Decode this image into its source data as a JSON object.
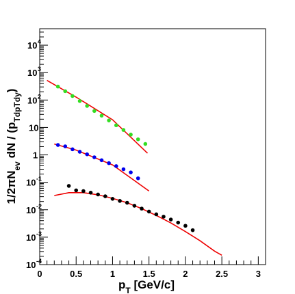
{
  "chart_data": {
    "type": "scatter",
    "xlabel": "p_T [GeV/c]",
    "ylabel": "1/2πN_ev dN / (p_Tdp_Tdy)",
    "xlim": [
      0,
      3.1
    ],
    "ylim_log10": [
      -4,
      4.6
    ],
    "y_scale": "log",
    "grid": false,
    "legend": "none",
    "x_ticks": [
      {
        "value": 0,
        "label": "0"
      },
      {
        "value": 0.5,
        "label": "0.5"
      },
      {
        "value": 1,
        "label": "1"
      },
      {
        "value": 1.5,
        "label": "1.5"
      },
      {
        "value": 2,
        "label": "2"
      },
      {
        "value": 2.5,
        "label": "2.5"
      },
      {
        "value": 3,
        "label": "3"
      }
    ],
    "y_ticks": [
      {
        "exp": 4,
        "base": "10",
        "sup": "4"
      },
      {
        "exp": 3,
        "base": "10",
        "sup": "3"
      },
      {
        "exp": 2,
        "base": "10",
        "sup": "2"
      },
      {
        "exp": 1,
        "base": "10",
        "sup": ""
      },
      {
        "exp": 0,
        "base": "1",
        "sup": ""
      },
      {
        "exp": -1,
        "base": "10",
        "sup": "-1"
      },
      {
        "exp": -2,
        "base": "10",
        "sup": "-2"
      },
      {
        "exp": -3,
        "base": "10",
        "sup": "-3"
      },
      {
        "exp": -4,
        "base": "10",
        "sup": "-4"
      }
    ],
    "series": [
      {
        "color": "#33dd22",
        "points": [
          [
            0.25,
            310
          ],
          [
            0.35,
            210
          ],
          [
            0.45,
            140
          ],
          [
            0.55,
            92
          ],
          [
            0.65,
            61
          ],
          [
            0.75,
            40
          ],
          [
            0.85,
            27
          ],
          [
            0.95,
            18
          ],
          [
            1.05,
            12
          ],
          [
            1.15,
            8.1
          ],
          [
            1.25,
            5.5
          ],
          [
            1.35,
            3.7
          ],
          [
            1.45,
            2.5
          ]
        ]
      },
      {
        "color": "#0000ee",
        "points": [
          [
            0.25,
            2.3
          ],
          [
            0.35,
            2.05
          ],
          [
            0.45,
            1.6
          ],
          [
            0.55,
            1.3
          ],
          [
            0.65,
            1.05
          ],
          [
            0.75,
            0.82
          ],
          [
            0.85,
            0.64
          ],
          [
            0.95,
            0.5
          ],
          [
            1.05,
            0.39
          ],
          [
            1.15,
            0.3
          ],
          [
            1.25,
            0.23
          ],
          [
            1.35,
            0.14
          ]
        ]
      },
      {
        "color": "#000000",
        "points": [
          [
            0.4,
            0.074
          ],
          [
            0.5,
            0.051
          ],
          [
            0.6,
            0.048
          ],
          [
            0.7,
            0.042
          ],
          [
            0.8,
            0.036
          ],
          [
            0.9,
            0.031
          ],
          [
            1.0,
            0.025
          ],
          [
            1.1,
            0.021
          ],
          [
            1.2,
            0.018
          ],
          [
            1.3,
            0.014
          ],
          [
            1.4,
            0.011
          ],
          [
            1.5,
            0.0086
          ],
          [
            1.6,
            0.0068
          ],
          [
            1.7,
            0.0056
          ],
          [
            1.8,
            0.0044
          ],
          [
            1.9,
            0.0034
          ],
          [
            2.0,
            0.0026
          ],
          [
            2.1,
            0.0018
          ]
        ]
      }
    ],
    "fits": [
      {
        "color": "#ee0000",
        "points": [
          [
            0.1,
            520
          ],
          [
            0.5,
            128
          ],
          [
            1.0,
            19
          ],
          [
            1.48,
            1.15
          ]
        ]
      },
      {
        "color": "#ee0000",
        "points": [
          [
            0.2,
            2.5
          ],
          [
            0.5,
            1.5
          ],
          [
            1.0,
            0.43
          ],
          [
            1.5,
            0.048
          ]
        ]
      },
      {
        "color": "#ee0000",
        "points": [
          [
            0.2,
            0.033
          ],
          [
            0.4,
            0.042
          ],
          [
            0.6,
            0.042
          ],
          [
            0.8,
            0.035
          ],
          [
            1.0,
            0.026
          ],
          [
            1.2,
            0.018
          ],
          [
            1.4,
            0.011
          ],
          [
            1.6,
            0.0062
          ],
          [
            1.8,
            0.0033
          ],
          [
            2.0,
            0.0016
          ],
          [
            2.2,
            0.00074
          ],
          [
            2.4,
            0.00031
          ],
          [
            2.5,
            0.00022
          ]
        ]
      }
    ]
  }
}
